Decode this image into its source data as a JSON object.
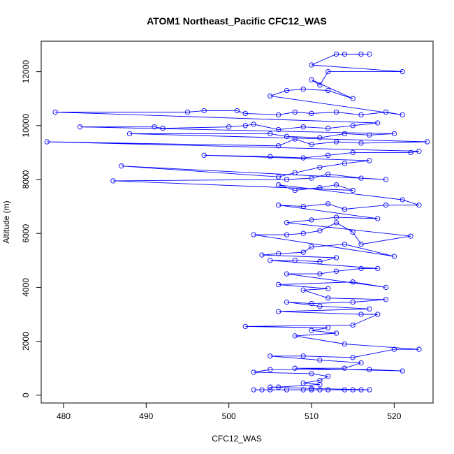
{
  "chart_data": {
    "type": "scatter",
    "title": "ATOM1 Northeast_Pacific CFC12_WAS",
    "xlabel": "CFC12_WAS",
    "ylabel": "Altitude (m)",
    "xlim": [
      477.3,
      524.7
    ],
    "ylim": [
      -290,
      13130
    ],
    "xticks": [
      480,
      490,
      500,
      510,
      520
    ],
    "yticks": [
      0,
      2000,
      4000,
      6000,
      8000,
      10000,
      12000
    ],
    "grid": false,
    "line_color": "#0000ff",
    "marker": "open-circle",
    "series": [
      {
        "name": "CFC12_WAS",
        "points": [
          [
            503,
            200
          ],
          [
            504,
            200
          ],
          [
            505,
            200
          ],
          [
            507,
            200
          ],
          [
            509,
            200
          ],
          [
            510,
            200
          ],
          [
            511,
            200
          ],
          [
            512,
            200
          ],
          [
            514,
            200
          ],
          [
            515,
            200
          ],
          [
            516,
            200
          ],
          [
            517,
            200
          ],
          [
            510,
            250
          ],
          [
            505,
            300
          ],
          [
            506,
            300
          ],
          [
            511,
            400
          ],
          [
            509,
            450
          ],
          [
            511,
            550
          ],
          [
            512,
            700
          ],
          [
            510,
            800
          ],
          [
            503,
            850
          ],
          [
            505,
            950
          ],
          [
            517,
            950
          ],
          [
            521,
            900
          ],
          [
            508,
            1000
          ],
          [
            514,
            1000
          ],
          [
            516,
            1200
          ],
          [
            511,
            1300
          ],
          [
            505,
            1450
          ],
          [
            509,
            1450
          ],
          [
            515,
            1400
          ],
          [
            520,
            1700
          ],
          [
            523,
            1700
          ],
          [
            514,
            1900
          ],
          [
            508,
            2200
          ],
          [
            513,
            2300
          ],
          [
            510,
            2400
          ],
          [
            512,
            2500
          ],
          [
            502,
            2550
          ],
          [
            515,
            2600
          ],
          [
            518,
            3000
          ],
          [
            516,
            3000
          ],
          [
            506,
            3100
          ],
          [
            517,
            3200
          ],
          [
            511,
            3300
          ],
          [
            507,
            3450
          ],
          [
            510,
            3400
          ],
          [
            515,
            3450
          ],
          [
            519,
            3550
          ],
          [
            512,
            3600
          ],
          [
            509,
            3900
          ],
          [
            512,
            3950
          ],
          [
            506,
            4100
          ],
          [
            515,
            4200
          ],
          [
            519,
            4000
          ],
          [
            507,
            4500
          ],
          [
            511,
            4500
          ],
          [
            513,
            4600
          ],
          [
            516,
            4700
          ],
          [
            518,
            4700
          ],
          [
            505,
            5000
          ],
          [
            508,
            5000
          ],
          [
            511,
            4950
          ],
          [
            513,
            5100
          ],
          [
            504,
            5200
          ],
          [
            506,
            5250
          ],
          [
            509,
            5300
          ],
          [
            510,
            5500
          ],
          [
            514,
            5600
          ],
          [
            520,
            5150
          ],
          [
            503,
            5950
          ],
          [
            507,
            5950
          ],
          [
            509,
            6000
          ],
          [
            511,
            6100
          ],
          [
            513,
            6400
          ],
          [
            515,
            6050
          ],
          [
            516,
            5600
          ],
          [
            522,
            5900
          ],
          [
            507,
            6400
          ],
          [
            510,
            6500
          ],
          [
            513,
            6600
          ],
          [
            518,
            6550
          ],
          [
            506,
            7050
          ],
          [
            509,
            7000
          ],
          [
            512,
            7100
          ],
          [
            514,
            6900
          ],
          [
            519,
            7050
          ],
          [
            523,
            7050
          ],
          [
            521,
            7250
          ],
          [
            506,
            7800
          ],
          [
            508,
            7600
          ],
          [
            511,
            7700
          ],
          [
            513,
            7800
          ],
          [
            515,
            7600
          ],
          [
            486,
            7950
          ],
          [
            507,
            8000
          ],
          [
            510,
            8050
          ],
          [
            512,
            8200
          ],
          [
            516,
            8050
          ],
          [
            519,
            8000
          ],
          [
            487,
            8500
          ],
          [
            506,
            8100
          ],
          [
            508,
            8250
          ],
          [
            511,
            8450
          ],
          [
            514,
            8600
          ],
          [
            517,
            8700
          ],
          [
            497,
            8900
          ],
          [
            505,
            8850
          ],
          [
            509,
            8800
          ],
          [
            512,
            8900
          ],
          [
            515,
            9000
          ],
          [
            522,
            9000
          ],
          [
            523,
            9050
          ],
          [
            478,
            9400
          ],
          [
            506,
            9250
          ],
          [
            508,
            9500
          ],
          [
            510,
            9300
          ],
          [
            513,
            9400
          ],
          [
            516,
            9350
          ],
          [
            524,
            9400
          ],
          [
            488,
            9700
          ],
          [
            505,
            9700
          ],
          [
            507,
            9600
          ],
          [
            511,
            9550
          ],
          [
            514,
            9700
          ],
          [
            517,
            9650
          ],
          [
            520,
            9700
          ],
          [
            482,
            9950
          ],
          [
            491,
            9950
          ],
          [
            492,
            9900
          ],
          [
            500,
            9950
          ],
          [
            502,
            10000
          ],
          [
            503,
            10050
          ],
          [
            506,
            9850
          ],
          [
            509,
            9950
          ],
          [
            512,
            9900
          ],
          [
            515,
            10000
          ],
          [
            518,
            10100
          ],
          [
            479,
            10500
          ],
          [
            495,
            10500
          ],
          [
            497,
            10550
          ],
          [
            501,
            10550
          ],
          [
            502,
            10450
          ],
          [
            506,
            10400
          ],
          [
            508,
            10500
          ],
          [
            510,
            10450
          ],
          [
            513,
            10500
          ],
          [
            516,
            10400
          ],
          [
            519,
            10500
          ],
          [
            521,
            10400
          ],
          [
            505,
            11100
          ],
          [
            507,
            11300
          ],
          [
            509,
            11350
          ],
          [
            512,
            11300
          ],
          [
            515,
            11000
          ],
          [
            510,
            11700
          ],
          [
            511,
            11500
          ],
          [
            512,
            12000
          ],
          [
            521,
            12000
          ],
          [
            510,
            12250
          ],
          [
            513,
            12650
          ],
          [
            514,
            12650
          ],
          [
            516,
            12650
          ],
          [
            517,
            12650
          ]
        ]
      }
    ]
  }
}
